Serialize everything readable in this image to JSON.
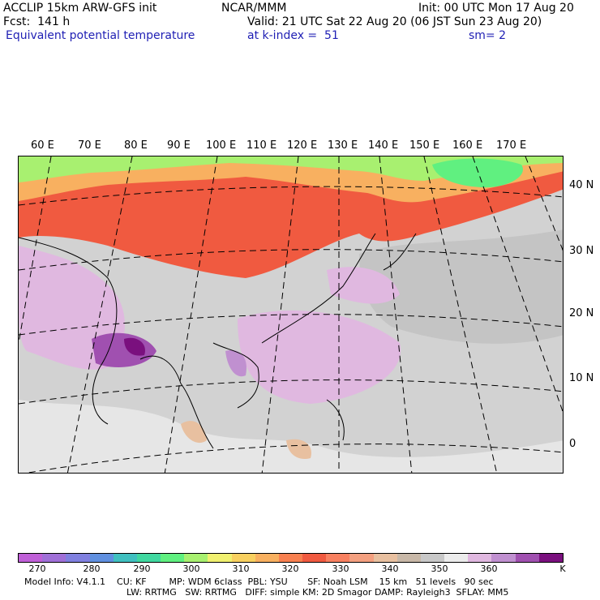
{
  "header": {
    "model_line": "ACCLIP 15km ARW-GFS init",
    "center_line": "NCAR/MMM",
    "init_line": "Init: 00 UTC Mon 17 Aug 20",
    "fcst_line": "Fcst:  141 h",
    "valid_line": "Valid: 21 UTC Sat 22 Aug 20 (06 JST Sun 23 Aug 20)",
    "field_name": "Equivalent potential temperature",
    "level_line": "at k-index =  51",
    "smooth_line": "sm= 2"
  },
  "longitude_labels": [
    "60 E",
    "70 E",
    "80 E",
    "90 E",
    "100 E",
    "110 E",
    "120 E",
    "130 E",
    "140 E",
    "150 E",
    "160 E",
    "170 E"
  ],
  "latitude_labels": [
    "40 N",
    "30 N",
    "20 N",
    "10 N",
    "0"
  ],
  "colorbar": {
    "colors": [
      "#c060d8",
      "#a070d8",
      "#8080e0",
      "#6090e0",
      "#40c0c0",
      "#40d8a0",
      "#60f080",
      "#a8f070",
      "#f0f070",
      "#f8d060",
      "#f8b060",
      "#f88050",
      "#f05a40",
      "#f88060",
      "#f4a080",
      "#e8c0a0",
      "#c8b8a8",
      "#c8c8c8",
      "#ececec",
      "#e0b8e0",
      "#c090d0",
      "#a050b0",
      "#7a107e"
    ],
    "tick_labels": [
      "270",
      "280",
      "290",
      "300",
      "310",
      "320",
      "330",
      "340",
      "350",
      "360"
    ],
    "unit": "K"
  },
  "footer": {
    "line1": "Model Info: V4.1.1    CU: KF        MP: WDM 6class  PBL: YSU       SF: Noah LSM    15 km   51 levels   90 sec",
    "line2": "LW: RRTMG   SW: RRTMG   DIFF: simple KM: 2D Smagor DAMP: Rayleigh3  SFLAY: MM5"
  }
}
